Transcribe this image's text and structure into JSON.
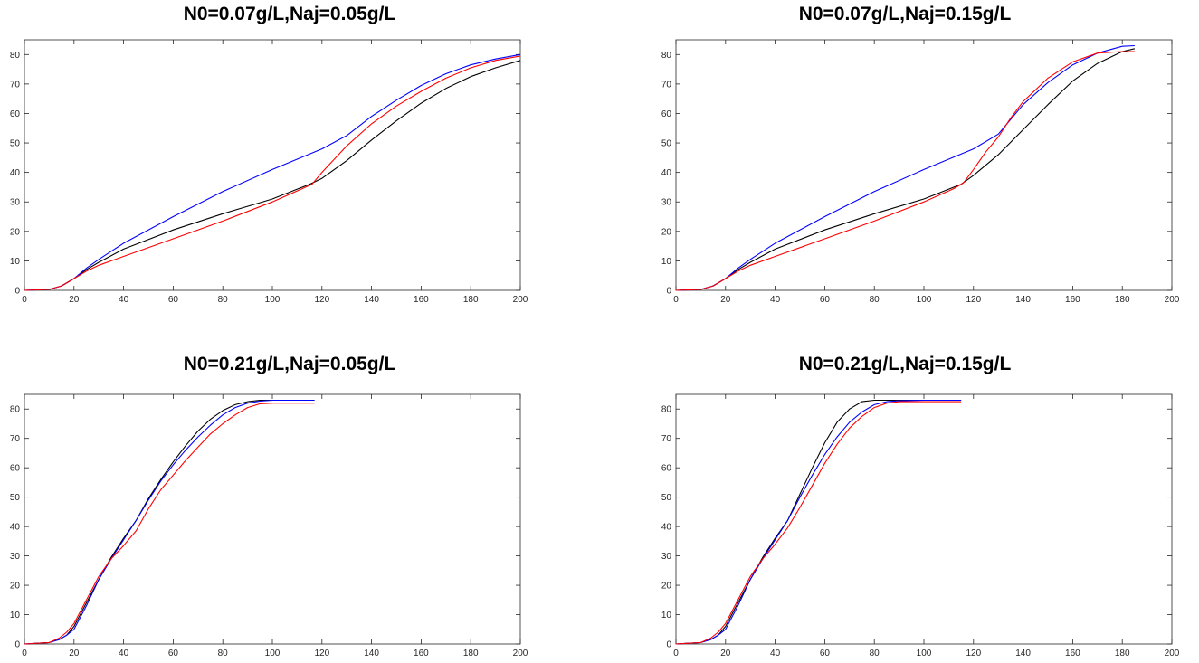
{
  "chart_data": [
    {
      "type": "line",
      "title": "N0=0.07g/L,Naj=0.05g/L",
      "xlabel": "",
      "ylabel": "",
      "xlim": [
        0,
        200
      ],
      "ylim": [
        0,
        85
      ],
      "xticks": [
        0,
        20,
        40,
        60,
        80,
        100,
        120,
        140,
        160,
        180,
        200
      ],
      "yticks": [
        0,
        10,
        20,
        30,
        40,
        50,
        60,
        70,
        80
      ],
      "grid": false,
      "series": [
        {
          "color": "#000000",
          "x": [
            0,
            10,
            15,
            20,
            25,
            30,
            40,
            60,
            80,
            100,
            115,
            120,
            130,
            140,
            150,
            160,
            170,
            180,
            190,
            200
          ],
          "y": [
            0,
            0.3,
            1.5,
            4,
            7,
            9.5,
            14,
            20.5,
            26,
            31,
            36,
            38,
            44,
            51,
            57.5,
            63.5,
            68.5,
            72.5,
            75.5,
            78
          ]
        },
        {
          "color": "#0000ff",
          "x": [
            0,
            10,
            15,
            20,
            25,
            30,
            40,
            60,
            80,
            100,
            120,
            130,
            140,
            150,
            160,
            170,
            180,
            190,
            200
          ],
          "y": [
            0,
            0.3,
            1.5,
            4,
            7.5,
            10.5,
            16,
            25,
            33.5,
            41,
            48,
            52.5,
            59,
            64.5,
            69.5,
            73.5,
            76.5,
            78.5,
            80
          ]
        },
        {
          "color": "#ff0000",
          "x": [
            0,
            10,
            15,
            20,
            25,
            30,
            40,
            60,
            80,
            100,
            112,
            116,
            120,
            130,
            140,
            150,
            160,
            170,
            180,
            190,
            200
          ],
          "y": [
            0,
            0.3,
            1.5,
            4,
            6.5,
            8.5,
            11.5,
            17.5,
            23.5,
            30,
            34.5,
            36,
            40,
            49,
            56.5,
            62.5,
            67.5,
            72,
            75.5,
            78,
            79.5
          ]
        }
      ]
    },
    {
      "type": "line",
      "title": "N0=0.07g/L,Naj=0.15g/L",
      "xlabel": "",
      "ylabel": "",
      "xlim": [
        0,
        200
      ],
      "ylim": [
        0,
        85
      ],
      "xticks": [
        0,
        20,
        40,
        60,
        80,
        100,
        120,
        140,
        160,
        180,
        200
      ],
      "yticks": [
        0,
        10,
        20,
        30,
        40,
        50,
        60,
        70,
        80
      ],
      "grid": false,
      "series": [
        {
          "color": "#000000",
          "x": [
            0,
            10,
            15,
            20,
            25,
            30,
            40,
            60,
            80,
            100,
            115,
            120,
            130,
            140,
            150,
            160,
            170,
            180,
            185
          ],
          "y": [
            0,
            0.3,
            1.5,
            4,
            7,
            9.5,
            14,
            20.5,
            26,
            31,
            36,
            39,
            46,
            54.5,
            63,
            71,
            77,
            81,
            82
          ]
        },
        {
          "color": "#0000ff",
          "x": [
            0,
            10,
            15,
            20,
            25,
            30,
            40,
            60,
            80,
            100,
            120,
            130,
            135,
            140,
            150,
            160,
            170,
            180,
            185
          ],
          "y": [
            0,
            0.3,
            1.5,
            4,
            7.5,
            10.5,
            16,
            25,
            33.5,
            41,
            48,
            53,
            58,
            63,
            70.5,
            76.5,
            80.5,
            82.8,
            83
          ]
        },
        {
          "color": "#ff0000",
          "x": [
            0,
            10,
            15,
            20,
            25,
            30,
            40,
            60,
            80,
            100,
            112,
            116,
            120,
            125,
            130,
            135,
            140,
            150,
            160,
            170,
            180,
            185
          ],
          "y": [
            0,
            0.3,
            1.5,
            4,
            6.5,
            8.5,
            11.5,
            17.5,
            23.5,
            30,
            34.5,
            36.5,
            41,
            47,
            52,
            58.5,
            64,
            72,
            77.5,
            80.5,
            81,
            81
          ]
        }
      ]
    },
    {
      "type": "line",
      "title": "N0=0.21g/L,Naj=0.05g/L",
      "xlabel": "",
      "ylabel": "",
      "xlim": [
        0,
        200
      ],
      "ylim": [
        0,
        85
      ],
      "xticks": [
        0,
        20,
        40,
        60,
        80,
        100,
        120,
        140,
        160,
        180,
        200
      ],
      "yticks": [
        0,
        10,
        20,
        30,
        40,
        50,
        60,
        70,
        80
      ],
      "grid": false,
      "series": [
        {
          "color": "#000000",
          "x": [
            0,
            10,
            14,
            17,
            20,
            25,
            30,
            35,
            40,
            45,
            50,
            55,
            60,
            65,
            70,
            75,
            80,
            85,
            90,
            95,
            100,
            110,
            117
          ],
          "y": [
            0,
            0.5,
            1.5,
            3,
            6,
            14,
            22,
            29.5,
            36,
            42,
            49.5,
            56,
            62,
            67.5,
            72.5,
            76.5,
            79.5,
            81.5,
            82.5,
            83,
            83,
            83,
            83
          ]
        },
        {
          "color": "#0000ff",
          "x": [
            0,
            10,
            14,
            17,
            20,
            25,
            30,
            35,
            40,
            45,
            50,
            55,
            60,
            65,
            70,
            75,
            80,
            85,
            90,
            95,
            100,
            110,
            117
          ],
          "y": [
            0,
            0.5,
            1.5,
            3,
            5,
            13,
            22,
            29,
            35.5,
            42,
            49,
            55.5,
            61,
            66,
            70.5,
            74.5,
            78,
            80.5,
            82,
            82.7,
            83,
            83,
            83
          ]
        },
        {
          "color": "#ff0000",
          "x": [
            0,
            10,
            14,
            17,
            20,
            25,
            30,
            35,
            40,
            45,
            50,
            55,
            60,
            65,
            70,
            75,
            80,
            85,
            90,
            95,
            100,
            110,
            117
          ],
          "y": [
            0,
            0.5,
            2,
            4,
            7,
            15,
            23,
            29,
            33.5,
            38.5,
            46,
            52.5,
            57.5,
            62.5,
            67,
            71.5,
            75,
            78,
            80.5,
            81.8,
            82,
            82,
            82
          ]
        }
      ]
    },
    {
      "type": "line",
      "title": "N0=0.21g/L,Naj=0.15g/L",
      "xlabel": "",
      "ylabel": "",
      "xlim": [
        0,
        200
      ],
      "ylim": [
        0,
        85
      ],
      "xticks": [
        0,
        20,
        40,
        60,
        80,
        100,
        120,
        140,
        160,
        180,
        200
      ],
      "yticks": [
        0,
        10,
        20,
        30,
        40,
        50,
        60,
        70,
        80
      ],
      "grid": false,
      "series": [
        {
          "color": "#000000",
          "x": [
            0,
            10,
            14,
            17,
            20,
            25,
            30,
            35,
            40,
            45,
            50,
            55,
            60,
            65,
            70,
            75,
            80,
            90,
            100,
            115
          ],
          "y": [
            0,
            0.5,
            1.5,
            3,
            6,
            14,
            22,
            29.5,
            36,
            42,
            51,
            60,
            68.5,
            75.5,
            80,
            82.5,
            83,
            83,
            83,
            83
          ]
        },
        {
          "color": "#0000ff",
          "x": [
            0,
            10,
            14,
            17,
            20,
            25,
            30,
            35,
            40,
            45,
            50,
            55,
            60,
            65,
            70,
            75,
            80,
            85,
            90,
            100,
            115
          ],
          "y": [
            0,
            0.5,
            1.5,
            3,
            5,
            13,
            22,
            29,
            35.5,
            42,
            50,
            57.5,
            64.5,
            70.5,
            75.5,
            79,
            81.5,
            82.5,
            82.8,
            83,
            83
          ]
        },
        {
          "color": "#ff0000",
          "x": [
            0,
            10,
            14,
            17,
            20,
            25,
            30,
            35,
            40,
            45,
            50,
            55,
            60,
            65,
            70,
            75,
            80,
            85,
            90,
            100,
            115
          ],
          "y": [
            0,
            0.5,
            2,
            4,
            7,
            15,
            23,
            29,
            34,
            39.5,
            46.5,
            54,
            61.5,
            68,
            73.5,
            77.5,
            80.5,
            82,
            82.5,
            82.5,
            82.5
          ]
        }
      ]
    }
  ]
}
